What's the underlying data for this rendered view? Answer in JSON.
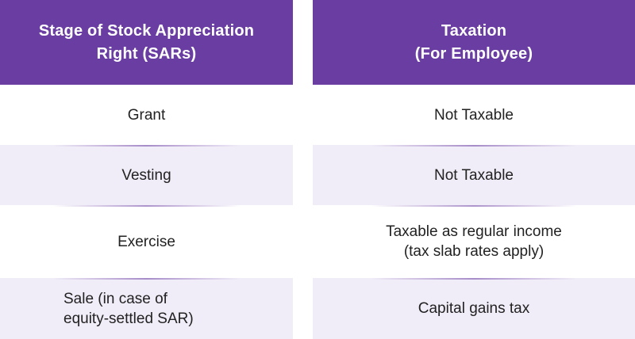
{
  "table": {
    "headers": [
      "Stage of Stock Appreciation\nRight (SARs)",
      "Taxation\n(For Employee)"
    ],
    "rows": [
      {
        "stage": "Grant",
        "taxation": "Not Taxable"
      },
      {
        "stage": "Vesting",
        "taxation": "Not Taxable"
      },
      {
        "stage": "Exercise",
        "taxation": "Taxable as regular income\n(tax slab rates apply)"
      },
      {
        "stage": "Sale (in case of\nequity-settled SAR)",
        "taxation": "Capital gains tax"
      }
    ]
  },
  "colors": {
    "header_bg": "#6a3da2",
    "header_text": "#ffffff",
    "row_alt_bg": "#f1edf8",
    "row_bg": "#ffffff",
    "body_text": "#222222"
  }
}
